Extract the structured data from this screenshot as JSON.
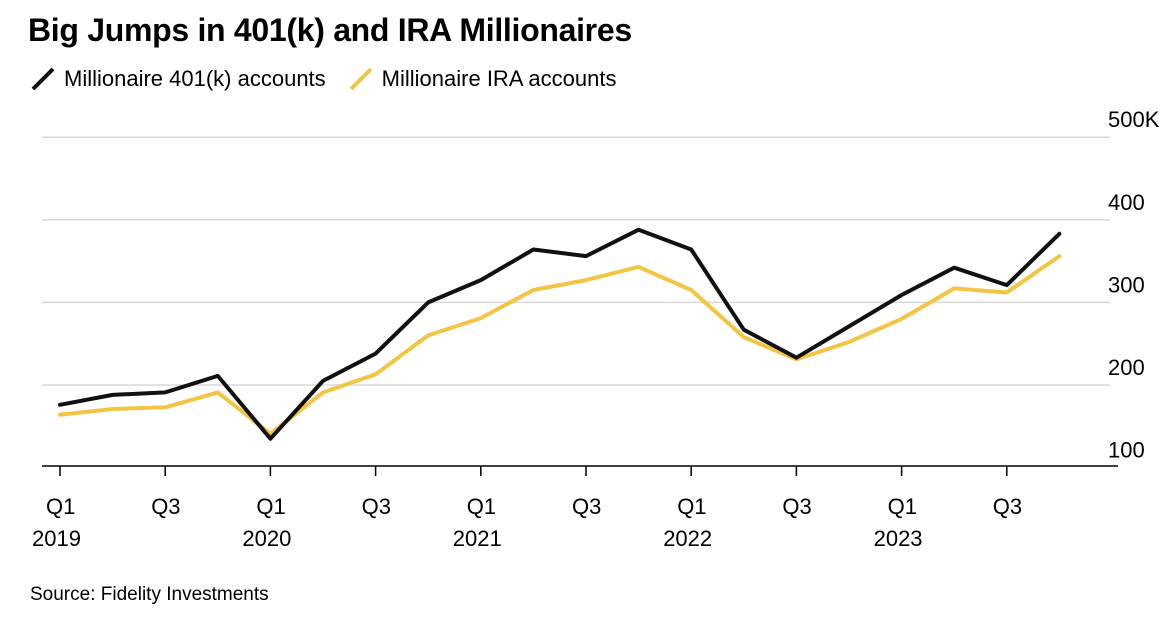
{
  "title": "Big Jumps in 401(k) and IRA Millionaires",
  "source": "Source: Fidelity Investments",
  "colors": {
    "series_401k": "#111111",
    "series_ira": "#F4C542",
    "grid": "#d9d9d9",
    "axis": "#000000"
  },
  "chart_data": {
    "type": "line",
    "title": "Big Jumps in 401(k) and IRA Millionaires",
    "xlabel": "",
    "ylabel": "",
    "x": [
      "Q1 2019",
      "Q2 2019",
      "Q3 2019",
      "Q4 2019",
      "Q1 2020",
      "Q2 2020",
      "Q3 2020",
      "Q4 2020",
      "Q1 2021",
      "Q2 2021",
      "Q3 2021",
      "Q4 2021",
      "Q1 2022",
      "Q2 2022",
      "Q3 2022",
      "Q4 2022",
      "Q1 2023",
      "Q2 2023",
      "Q3 2023",
      "Q4 2023"
    ],
    "x_tick_labels": [
      {
        "index": 0,
        "line1": "Q1",
        "line2": "2019"
      },
      {
        "index": 2,
        "line1": "Q3",
        "line2": ""
      },
      {
        "index": 4,
        "line1": "Q1",
        "line2": "2020"
      },
      {
        "index": 6,
        "line1": "Q3",
        "line2": ""
      },
      {
        "index": 8,
        "line1": "Q1",
        "line2": "2021"
      },
      {
        "index": 10,
        "line1": "Q3",
        "line2": ""
      },
      {
        "index": 12,
        "line1": "Q1",
        "line2": "2022"
      },
      {
        "index": 14,
        "line1": "Q3",
        "line2": ""
      },
      {
        "index": 16,
        "line1": "Q1",
        "line2": "2023"
      },
      {
        "index": 18,
        "line1": "Q3",
        "line2": ""
      }
    ],
    "y_ticks": [
      {
        "value": 100,
        "label": "100"
      },
      {
        "value": 200,
        "label": "200"
      },
      {
        "value": 300,
        "label": "300"
      },
      {
        "value": 400,
        "label": "400"
      },
      {
        "value": 500,
        "label": "500K"
      }
    ],
    "ylim": [
      80,
      520
    ],
    "grid": true,
    "legend_position": "top-left",
    "series": [
      {
        "name": "Millionaire 401(k) accounts",
        "color": "#111111",
        "values": [
          176,
          188,
          191,
          211,
          135,
          205,
          238,
          300,
          327,
          364,
          356,
          388,
          364,
          267,
          233,
          271,
          309,
          342,
          321,
          383
        ]
      },
      {
        "name": "Millionaire IRA accounts",
        "color": "#F4C542",
        "values": [
          164,
          171,
          173,
          191,
          141,
          191,
          213,
          260,
          281,
          315,
          327,
          343,
          315,
          258,
          231,
          252,
          280,
          317,
          312,
          356
        ]
      }
    ]
  }
}
